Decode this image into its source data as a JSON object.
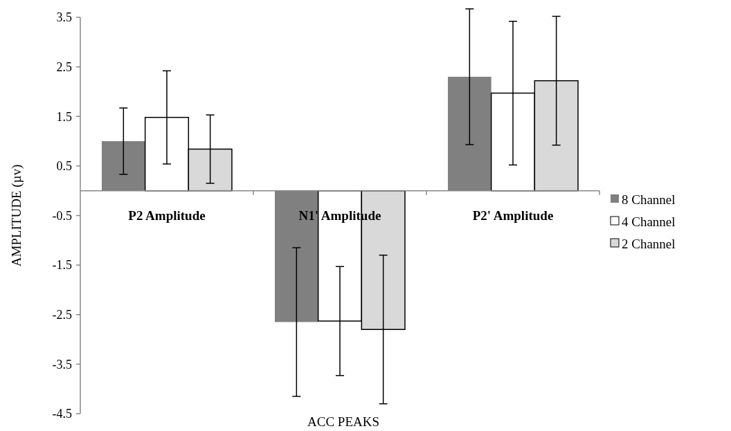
{
  "chart_data": {
    "type": "bar",
    "xlabel": "ACC PEAKS",
    "ylabel": "AMPLITUDE (µv)",
    "categories": [
      "P2 Amplitude",
      "N1' Amplitude",
      "P2' Amplitude"
    ],
    "series": [
      {
        "name": "8 Channel",
        "color": "#808080",
        "values": [
          1.0,
          -2.65,
          2.3
        ],
        "errors": [
          0.67,
          1.5,
          1.37
        ]
      },
      {
        "name": "4 Channel",
        "color": "#ffffff",
        "values": [
          1.48,
          -2.63,
          1.97
        ],
        "errors": [
          0.94,
          1.1,
          1.45
        ]
      },
      {
        "name": "2 Channel",
        "color": "#d9d9d9",
        "values": [
          0.84,
          -2.8,
          2.22
        ],
        "errors": [
          0.69,
          1.5,
          1.3
        ]
      }
    ],
    "ylim": [
      -4.5,
      3.5
    ],
    "yticks": [
      -4.5,
      -3.5,
      -2.5,
      -1.5,
      -0.5,
      0.5,
      1.5,
      2.5,
      3.5
    ],
    "grid": false,
    "legend": "right"
  }
}
